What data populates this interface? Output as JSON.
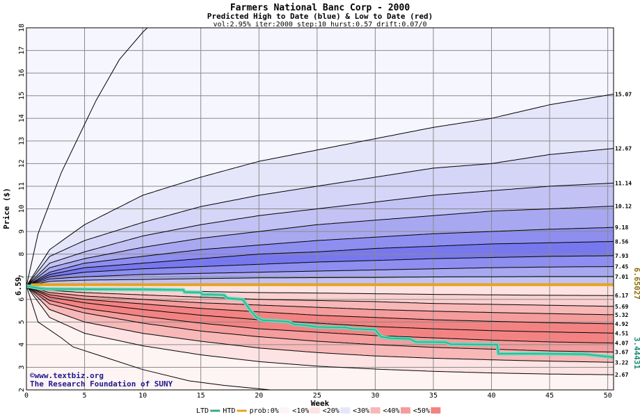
{
  "chart_data": {
    "type": "area",
    "title": "Farmers National Banc Corp - 2000",
    "subtitle": "Predicted High to Date (blue) &  Low to Date (red)",
    "params": "vol:2.95% iter:2000 step:10 hurst:0.57 drift:0.07/0",
    "xlabel": "Week",
    "ylabel": "Price ($)",
    "xlim": [
      0,
      50.5
    ],
    "ylim": [
      2,
      18
    ],
    "x_ticks": [
      0,
      5,
      10,
      15,
      20,
      25,
      30,
      35,
      40,
      45,
      50
    ],
    "y_ticks": [
      2,
      3,
      4,
      5,
      6,
      7,
      8,
      9,
      10,
      11,
      12,
      13,
      14,
      15,
      16,
      17,
      18
    ],
    "start_value_label": "6.59",
    "current_price_label": "6.65027",
    "current_low_label": "3.44431",
    "grid": true,
    "high_percentiles": [
      {
        "label": "15.07",
        "points": [
          [
            0,
            6.59
          ],
          [
            2,
            8.2
          ],
          [
            5,
            9.3
          ],
          [
            10,
            10.6
          ],
          [
            15,
            11.4
          ],
          [
            20,
            12.1
          ],
          [
            25,
            12.6
          ],
          [
            30,
            13.1
          ],
          [
            35,
            13.6
          ],
          [
            40,
            14.0
          ],
          [
            45,
            14.6
          ],
          [
            50.5,
            15.07
          ]
        ]
      },
      {
        "label": "12.67",
        "points": [
          [
            0,
            6.59
          ],
          [
            2,
            7.9
          ],
          [
            5,
            8.6
          ],
          [
            10,
            9.4
          ],
          [
            15,
            10.1
          ],
          [
            20,
            10.6
          ],
          [
            25,
            11.0
          ],
          [
            30,
            11.4
          ],
          [
            35,
            11.8
          ],
          [
            40,
            12.0
          ],
          [
            45,
            12.4
          ],
          [
            50.5,
            12.67
          ]
        ]
      },
      {
        "label": "11.14",
        "points": [
          [
            0,
            6.59
          ],
          [
            2,
            7.6
          ],
          [
            5,
            8.1
          ],
          [
            10,
            8.8
          ],
          [
            15,
            9.3
          ],
          [
            20,
            9.7
          ],
          [
            25,
            10.0
          ],
          [
            30,
            10.3
          ],
          [
            35,
            10.6
          ],
          [
            40,
            10.8
          ],
          [
            45,
            11.0
          ],
          [
            50.5,
            11.14
          ]
        ]
      },
      {
        "label": "10.12",
        "points": [
          [
            0,
            6.59
          ],
          [
            2,
            7.4
          ],
          [
            5,
            7.8
          ],
          [
            10,
            8.3
          ],
          [
            15,
            8.7
          ],
          [
            20,
            9.0
          ],
          [
            25,
            9.3
          ],
          [
            30,
            9.5
          ],
          [
            35,
            9.7
          ],
          [
            40,
            9.9
          ],
          [
            45,
            10.0
          ],
          [
            50.5,
            10.12
          ]
        ]
      },
      {
        "label": "9.18",
        "points": [
          [
            0,
            6.59
          ],
          [
            2,
            7.2
          ],
          [
            5,
            7.6
          ],
          [
            10,
            7.9
          ],
          [
            15,
            8.2
          ],
          [
            20,
            8.4
          ],
          [
            25,
            8.6
          ],
          [
            30,
            8.75
          ],
          [
            35,
            8.9
          ],
          [
            40,
            9.0
          ],
          [
            45,
            9.1
          ],
          [
            50.5,
            9.18
          ]
        ]
      },
      {
        "label": "8.56",
        "points": [
          [
            0,
            6.59
          ],
          [
            2,
            7.1
          ],
          [
            5,
            7.4
          ],
          [
            10,
            7.6
          ],
          [
            15,
            7.8
          ],
          [
            20,
            8.0
          ],
          [
            25,
            8.1
          ],
          [
            30,
            8.25
          ],
          [
            35,
            8.35
          ],
          [
            40,
            8.45
          ],
          [
            45,
            8.5
          ],
          [
            50.5,
            8.56
          ]
        ]
      },
      {
        "label": "7.93",
        "points": [
          [
            0,
            6.59
          ],
          [
            2,
            7.0
          ],
          [
            5,
            7.2
          ],
          [
            10,
            7.35
          ],
          [
            15,
            7.45
          ],
          [
            20,
            7.55
          ],
          [
            25,
            7.65
          ],
          [
            30,
            7.72
          ],
          [
            35,
            7.8
          ],
          [
            40,
            7.85
          ],
          [
            45,
            7.9
          ],
          [
            50.5,
            7.93
          ]
        ]
      },
      {
        "label": "7.45",
        "points": [
          [
            0,
            6.59
          ],
          [
            2,
            6.9
          ],
          [
            5,
            7.0
          ],
          [
            10,
            7.1
          ],
          [
            15,
            7.15
          ],
          [
            20,
            7.2
          ],
          [
            25,
            7.25
          ],
          [
            30,
            7.3
          ],
          [
            35,
            7.35
          ],
          [
            40,
            7.4
          ],
          [
            45,
            7.43
          ],
          [
            50.5,
            7.45
          ]
        ]
      },
      {
        "label": "7.01",
        "points": [
          [
            0,
            6.59
          ],
          [
            2,
            6.8
          ],
          [
            5,
            6.85
          ],
          [
            10,
            6.88
          ],
          [
            15,
            6.92
          ],
          [
            20,
            6.95
          ],
          [
            25,
            6.96
          ],
          [
            30,
            6.97
          ],
          [
            35,
            6.99
          ],
          [
            40,
            7.0
          ],
          [
            45,
            7.01
          ],
          [
            50.5,
            7.01
          ]
        ]
      }
    ],
    "high_extreme": [
      [
        0,
        6.59
      ],
      [
        1,
        8.9
      ],
      [
        3,
        11.6
      ],
      [
        6,
        14.8
      ],
      [
        8,
        16.6
      ],
      [
        10,
        17.8
      ],
      [
        11,
        18.4
      ]
    ],
    "low_percentiles": [
      {
        "label": "6.17",
        "points": [
          [
            0,
            6.59
          ],
          [
            2,
            6.5
          ],
          [
            5,
            6.45
          ],
          [
            10,
            6.4
          ],
          [
            15,
            6.35
          ],
          [
            20,
            6.3
          ],
          [
            25,
            6.28
          ],
          [
            30,
            6.25
          ],
          [
            35,
            6.22
          ],
          [
            40,
            6.2
          ],
          [
            45,
            6.18
          ],
          [
            50.5,
            6.17
          ]
        ]
      },
      {
        "label": "5.69",
        "points": [
          [
            0,
            6.59
          ],
          [
            2,
            6.4
          ],
          [
            5,
            6.3
          ],
          [
            10,
            6.2
          ],
          [
            15,
            6.1
          ],
          [
            20,
            6.0
          ],
          [
            25,
            5.95
          ],
          [
            30,
            5.9
          ],
          [
            35,
            5.82
          ],
          [
            40,
            5.78
          ],
          [
            45,
            5.74
          ],
          [
            50.5,
            5.69
          ]
        ]
      },
      {
        "label": "5.32",
        "points": [
          [
            0,
            6.59
          ],
          [
            2,
            6.3
          ],
          [
            5,
            6.15
          ],
          [
            10,
            6.0
          ],
          [
            15,
            5.85
          ],
          [
            20,
            5.75
          ],
          [
            25,
            5.65
          ],
          [
            30,
            5.55
          ],
          [
            35,
            5.48
          ],
          [
            40,
            5.42
          ],
          [
            45,
            5.37
          ],
          [
            50.5,
            5.32
          ]
        ]
      },
      {
        "label": "4.92",
        "points": [
          [
            0,
            6.59
          ],
          [
            2,
            6.2
          ],
          [
            5,
            6.0
          ],
          [
            10,
            5.8
          ],
          [
            15,
            5.6
          ],
          [
            20,
            5.45
          ],
          [
            25,
            5.3
          ],
          [
            30,
            5.2
          ],
          [
            35,
            5.1
          ],
          [
            40,
            5.03
          ],
          [
            45,
            4.97
          ],
          [
            50.5,
            4.92
          ]
        ]
      },
      {
        "label": "4.51",
        "points": [
          [
            0,
            6.59
          ],
          [
            2,
            6.1
          ],
          [
            5,
            5.85
          ],
          [
            10,
            5.55
          ],
          [
            15,
            5.3
          ],
          [
            20,
            5.1
          ],
          [
            25,
            4.95
          ],
          [
            30,
            4.8
          ],
          [
            35,
            4.7
          ],
          [
            40,
            4.62
          ],
          [
            45,
            4.56
          ],
          [
            50.5,
            4.51
          ]
        ]
      },
      {
        "label": "4.07",
        "points": [
          [
            0,
            6.59
          ],
          [
            2,
            5.95
          ],
          [
            5,
            5.6
          ],
          [
            10,
            5.25
          ],
          [
            15,
            4.95
          ],
          [
            20,
            4.7
          ],
          [
            25,
            4.55
          ],
          [
            30,
            4.4
          ],
          [
            35,
            4.3
          ],
          [
            40,
            4.2
          ],
          [
            45,
            4.12
          ],
          [
            50.5,
            4.07
          ]
        ]
      },
      {
        "label": "3.67",
        "points": [
          [
            0,
            6.59
          ],
          [
            2,
            5.8
          ],
          [
            5,
            5.4
          ],
          [
            10,
            4.95
          ],
          [
            15,
            4.6
          ],
          [
            20,
            4.35
          ],
          [
            25,
            4.15
          ],
          [
            30,
            4.0
          ],
          [
            35,
            3.88
          ],
          [
            40,
            3.8
          ],
          [
            45,
            3.72
          ],
          [
            50.5,
            3.67
          ]
        ]
      },
      {
        "label": "3.22",
        "points": [
          [
            0,
            6.59
          ],
          [
            2,
            5.55
          ],
          [
            5,
            5.0
          ],
          [
            10,
            4.5
          ],
          [
            15,
            4.15
          ],
          [
            20,
            3.85
          ],
          [
            25,
            3.65
          ],
          [
            30,
            3.5
          ],
          [
            35,
            3.4
          ],
          [
            40,
            3.33
          ],
          [
            45,
            3.27
          ],
          [
            50.5,
            3.22
          ]
        ]
      },
      {
        "label": "2.67",
        "points": [
          [
            0,
            6.59
          ],
          [
            2,
            5.2
          ],
          [
            5,
            4.5
          ],
          [
            10,
            3.95
          ],
          [
            15,
            3.55
          ],
          [
            20,
            3.25
          ],
          [
            25,
            3.05
          ],
          [
            30,
            2.92
          ],
          [
            35,
            2.82
          ],
          [
            40,
            2.75
          ],
          [
            45,
            2.7
          ],
          [
            50.5,
            2.67
          ]
        ]
      }
    ],
    "low_extreme": [
      [
        0,
        6.59
      ],
      [
        1,
        5.0
      ],
      [
        3,
        4.3
      ],
      [
        4,
        3.9
      ],
      [
        7,
        3.4
      ],
      [
        10,
        2.9
      ],
      [
        14,
        2.4
      ],
      [
        17,
        2.2
      ],
      [
        20,
        2.05
      ],
      [
        21,
        2.0
      ]
    ],
    "current_price": 6.65,
    "htd_series": [
      [
        0,
        6.59
      ],
      [
        0.5,
        6.59
      ],
      [
        0.5,
        6.65
      ],
      [
        50.5,
        6.65
      ]
    ],
    "ltd_series": [
      [
        0,
        6.59
      ],
      [
        1,
        6.5
      ],
      [
        1.5,
        6.46
      ],
      [
        10,
        6.44
      ],
      [
        13.5,
        6.42
      ],
      [
        13.6,
        6.32
      ],
      [
        15,
        6.31
      ],
      [
        15.1,
        6.22
      ],
      [
        16,
        6.21
      ],
      [
        17,
        6.19
      ],
      [
        17.3,
        6.05
      ],
      [
        18.6,
        6.0
      ],
      [
        19.3,
        5.48
      ],
      [
        19.8,
        5.2
      ],
      [
        20.3,
        5.08
      ],
      [
        22.5,
        5.02
      ],
      [
        23,
        4.9
      ],
      [
        24,
        4.86
      ],
      [
        25,
        4.78
      ],
      [
        27.5,
        4.76
      ],
      [
        28,
        4.7
      ],
      [
        30,
        4.66
      ],
      [
        30.5,
        4.35
      ],
      [
        31.4,
        4.28
      ],
      [
        33,
        4.25
      ],
      [
        33.5,
        4.12
      ],
      [
        36,
        4.11
      ],
      [
        36.5,
        4.02
      ],
      [
        40.5,
        4.0
      ],
      [
        40.6,
        3.6
      ],
      [
        44,
        3.6
      ],
      [
        48,
        3.58
      ],
      [
        49.5,
        3.5
      ],
      [
        50.5,
        3.44
      ]
    ],
    "band_colors": {
      "high": [
        "#f6f6ff",
        "#e6e6fb",
        "#d5d5f7",
        "#c2c2f4",
        "#a8a8f1",
        "#8e8ef0",
        "#7878ee",
        "#8e8ef0",
        "#a8a8f1",
        "#c2c2f4"
      ],
      "low": [
        "#fff4f4",
        "#fde3e3",
        "#fbd0d0",
        "#f8b8b8",
        "#f59c9c",
        "#f38383",
        "#f38383",
        "#f59c9c",
        "#f8b8b8",
        "#fde3e3"
      ],
      "htd_line": "#e8a21a",
      "ltd_line": "#3aa884",
      "ltd_glow": "#58e0c0"
    },
    "credits": [
      "©www.textbiz.org",
      "The Research Foundation of SUNY"
    ],
    "legend": [
      {
        "label": "LTD",
        "color": "#3aa884"
      },
      {
        "label": "HTD",
        "color": "#e8a21a"
      },
      {
        "label": "prob:0%",
        "color": "#fff4f4"
      },
      {
        "label": "<10%",
        "color": "#fde3e3"
      },
      {
        "label": "<20%",
        "color": "#e6e6fb"
      },
      {
        "label": "<30%",
        "color": "#f8b8b8"
      },
      {
        "label": "<40%",
        "color": "#f59c9c"
      },
      {
        "label": "<50%",
        "color": "#f38383"
      }
    ]
  }
}
